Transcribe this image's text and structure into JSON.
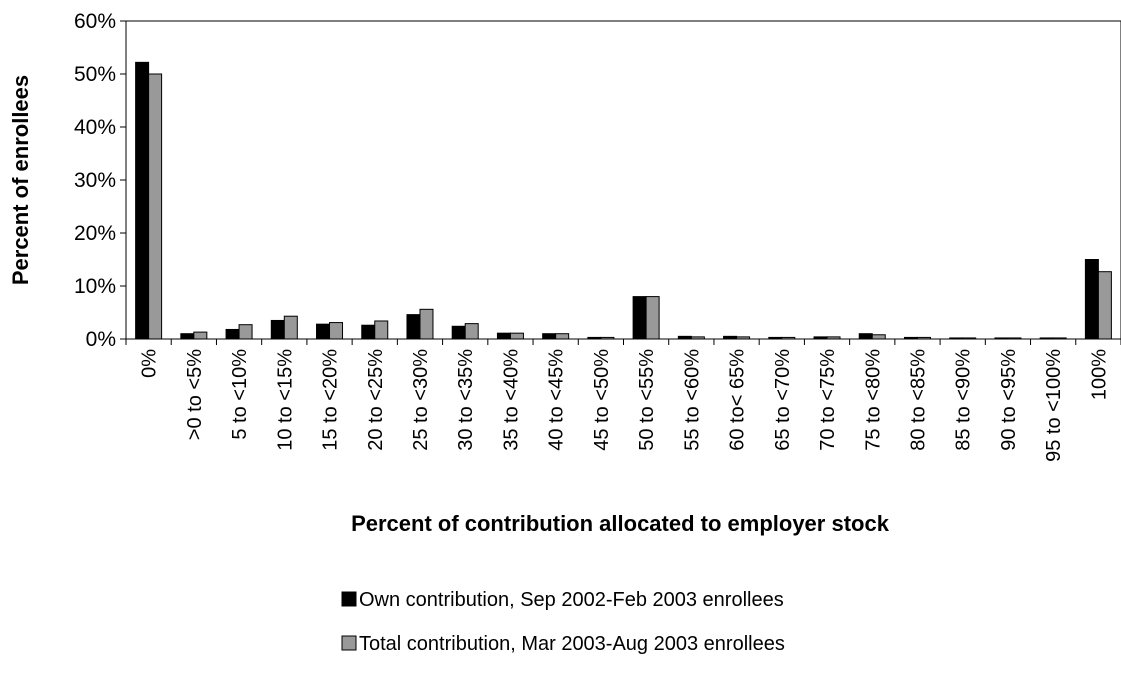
{
  "chart_data": {
    "type": "bar",
    "xlabel": "Percent of contribution allocated to employer stock",
    "ylabel": "Percent of enrollees",
    "ylim": [
      0,
      60
    ],
    "yticks": [
      "0%",
      "10%",
      "20%",
      "30%",
      "40%",
      "50%",
      "60%"
    ],
    "ytick_values": [
      0,
      10,
      20,
      30,
      40,
      50,
      60
    ],
    "grid": false,
    "legend_position": "bottom",
    "categories": [
      "0%",
      ">0 to <5%",
      "5 to <10%",
      "10 to <15%",
      "15 to <20%",
      "20 to <25%",
      "25 to <30%",
      "30 to <35%",
      "35 to <40%",
      "40 to <45%",
      "45 to <50%",
      "50 to <55%",
      "55 to <60%",
      "60 to< 65%",
      "65 to <70%",
      "70 to <75%",
      "75 to <80%",
      "80 to <85%",
      "85 to <90%",
      "90 to <95%",
      "95 to <100%",
      "100%"
    ],
    "series": [
      {
        "name": "Own contribution, Sep 2002-Feb 2003 enrollees",
        "color": "#000000",
        "values": [
          52.2,
          1.0,
          1.8,
          3.5,
          2.8,
          2.6,
          4.6,
          2.4,
          1.1,
          1.0,
          0.3,
          8.0,
          0.5,
          0.5,
          0.3,
          0.4,
          1.0,
          0.3,
          0.2,
          0.2,
          0.2,
          15.0
        ]
      },
      {
        "name": "Total contribution, Mar 2003-Aug 2003 enrollees",
        "color": "#999999",
        "values": [
          50.0,
          1.3,
          2.7,
          4.3,
          3.1,
          3.4,
          5.6,
          2.9,
          1.1,
          1.0,
          0.3,
          8.0,
          0.4,
          0.4,
          0.3,
          0.4,
          0.8,
          0.3,
          0.2,
          0.2,
          0.2,
          12.7
        ]
      }
    ]
  }
}
